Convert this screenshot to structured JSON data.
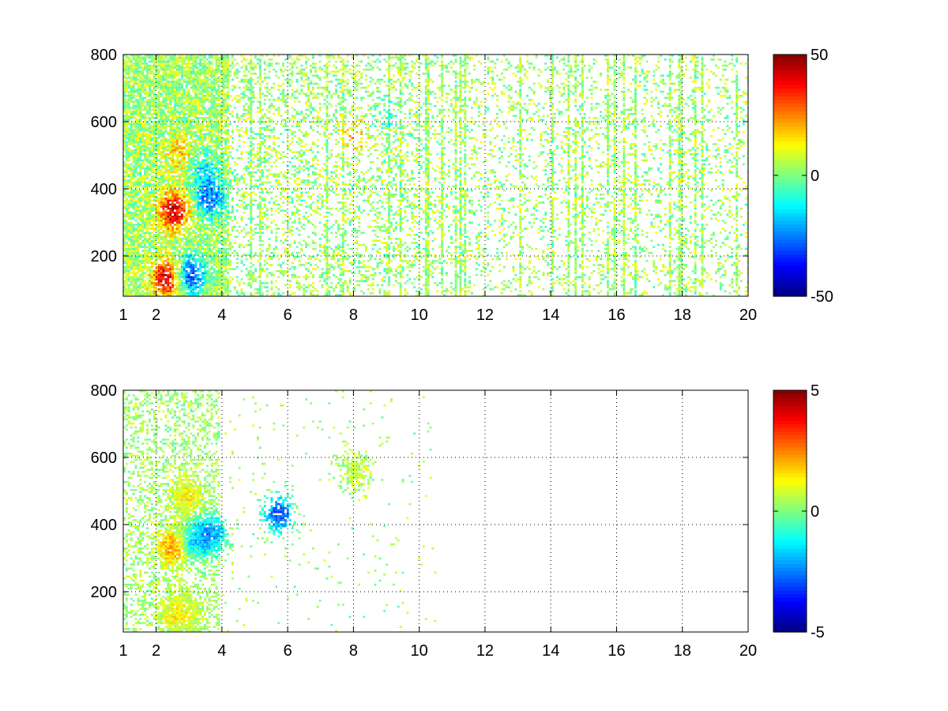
{
  "chart_data": [
    {
      "type": "heatmap",
      "title": "",
      "xlabel": "",
      "ylabel": "",
      "xlim": [
        1,
        20
      ],
      "ylim": [
        80,
        800
      ],
      "xticks": [
        1,
        2,
        4,
        6,
        8,
        10,
        12,
        14,
        16,
        18,
        20
      ],
      "xtick_labels": [
        "1",
        "2",
        "4",
        "6",
        "8",
        "10",
        "12",
        "14",
        "16",
        "18",
        "20"
      ],
      "yticks": [
        200,
        400,
        600,
        800
      ],
      "ytick_labels": [
        "200",
        "400",
        "600",
        "800"
      ],
      "grid": true,
      "colormap": "jet",
      "colorbar": {
        "min": -50,
        "max": 50,
        "ticks": [
          50,
          0,
          -50
        ],
        "tick_labels": [
          "50",
          "0",
          "-50"
        ]
      },
      "features": [
        {
          "x": 2.3,
          "y": 130,
          "value": 40
        },
        {
          "x": 3.0,
          "y": 140,
          "value": -35
        },
        {
          "x": 2.5,
          "y": 330,
          "value": 42
        },
        {
          "x": 3.6,
          "y": 370,
          "value": -30
        },
        {
          "x": 2.7,
          "y": 500,
          "value": 15
        },
        {
          "x": 3.4,
          "y": 460,
          "value": -15
        },
        {
          "x": 8.0,
          "y": 560,
          "value": 15
        },
        {
          "x": 9.0,
          "y": 610,
          "value": -10
        }
      ]
    },
    {
      "type": "heatmap",
      "title": "",
      "xlabel": "",
      "ylabel": "",
      "xlim": [
        1,
        20
      ],
      "ylim": [
        80,
        800
      ],
      "xticks": [
        1,
        2,
        4,
        6,
        8,
        10,
        12,
        14,
        16,
        18,
        20
      ],
      "xtick_labels": [
        "1",
        "2",
        "4",
        "6",
        "8",
        "10",
        "12",
        "14",
        "16",
        "18",
        "20"
      ],
      "yticks": [
        200,
        400,
        600,
        800
      ],
      "ytick_labels": [
        "200",
        "400",
        "600",
        "800"
      ],
      "grid": true,
      "colormap": "jet",
      "colorbar": {
        "min": -5,
        "max": 5,
        "ticks": [
          5,
          0,
          -5
        ],
        "tick_labels": [
          "5",
          "0",
          "-5"
        ]
      },
      "features": [
        {
          "x": 2.5,
          "y": 130,
          "value": 0.8
        },
        {
          "x": 2.9,
          "y": 130,
          "value": 0.5
        },
        {
          "x": 2.5,
          "y": 330,
          "value": 2.2
        },
        {
          "x": 3.1,
          "y": 350,
          "value": -2.0
        },
        {
          "x": 3.7,
          "y": 370,
          "value": -2.2
        },
        {
          "x": 2.9,
          "y": 480,
          "value": 1.0
        },
        {
          "x": 8.0,
          "y": 560,
          "value": 0.4
        },
        {
          "x": 5.7,
          "y": 430,
          "value": -3.5
        }
      ]
    }
  ]
}
